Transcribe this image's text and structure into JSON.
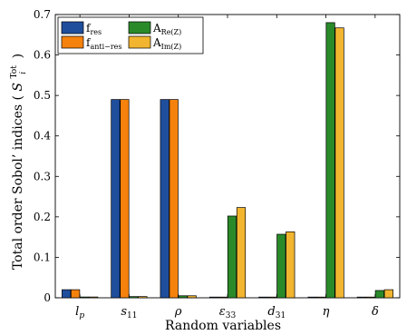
{
  "chart_data": {
    "type": "bar",
    "categories": [
      "l",
      "s",
      "ρ",
      "ε",
      "d",
      "η",
      "δ"
    ],
    "category_subscripts": [
      "p",
      "11",
      "",
      "33",
      "31",
      "",
      ""
    ],
    "xlabel": "Random variables",
    "ylabel": "Total order Sobol’ indices",
    "ylabel_symbol": "S",
    "ylabel_symbol_sub": "i",
    "ylabel_symbol_sup": "Tot",
    "ylim": [
      0,
      0.7
    ],
    "yticks": [
      "0",
      "0.1",
      "0.2",
      "0.3",
      "0.4",
      "0.5",
      "0.6",
      "0.7"
    ],
    "legend_placement": "top-left",
    "series": [
      {
        "base": "f",
        "sub": "res",
        "color": "#1f4e9c",
        "values": [
          0.02,
          0.49,
          0.49,
          0.0,
          0.0,
          0.0,
          0.0
        ]
      },
      {
        "base": "f",
        "sub": "anti−res",
        "color": "#f5820d",
        "values": [
          0.02,
          0.49,
          0.49,
          0.0,
          0.0,
          0.0,
          0.0
        ]
      },
      {
        "base": "A",
        "sub": "Re(Z)",
        "color": "#2a8a2a",
        "values": [
          0.002,
          0.003,
          0.005,
          0.202,
          0.157,
          0.68,
          0.018
        ]
      },
      {
        "base": "A",
        "sub": "Im(Z)",
        "color": "#f2b530",
        "values": [
          0.002,
          0.003,
          0.005,
          0.223,
          0.163,
          0.667,
          0.02
        ]
      }
    ]
  }
}
